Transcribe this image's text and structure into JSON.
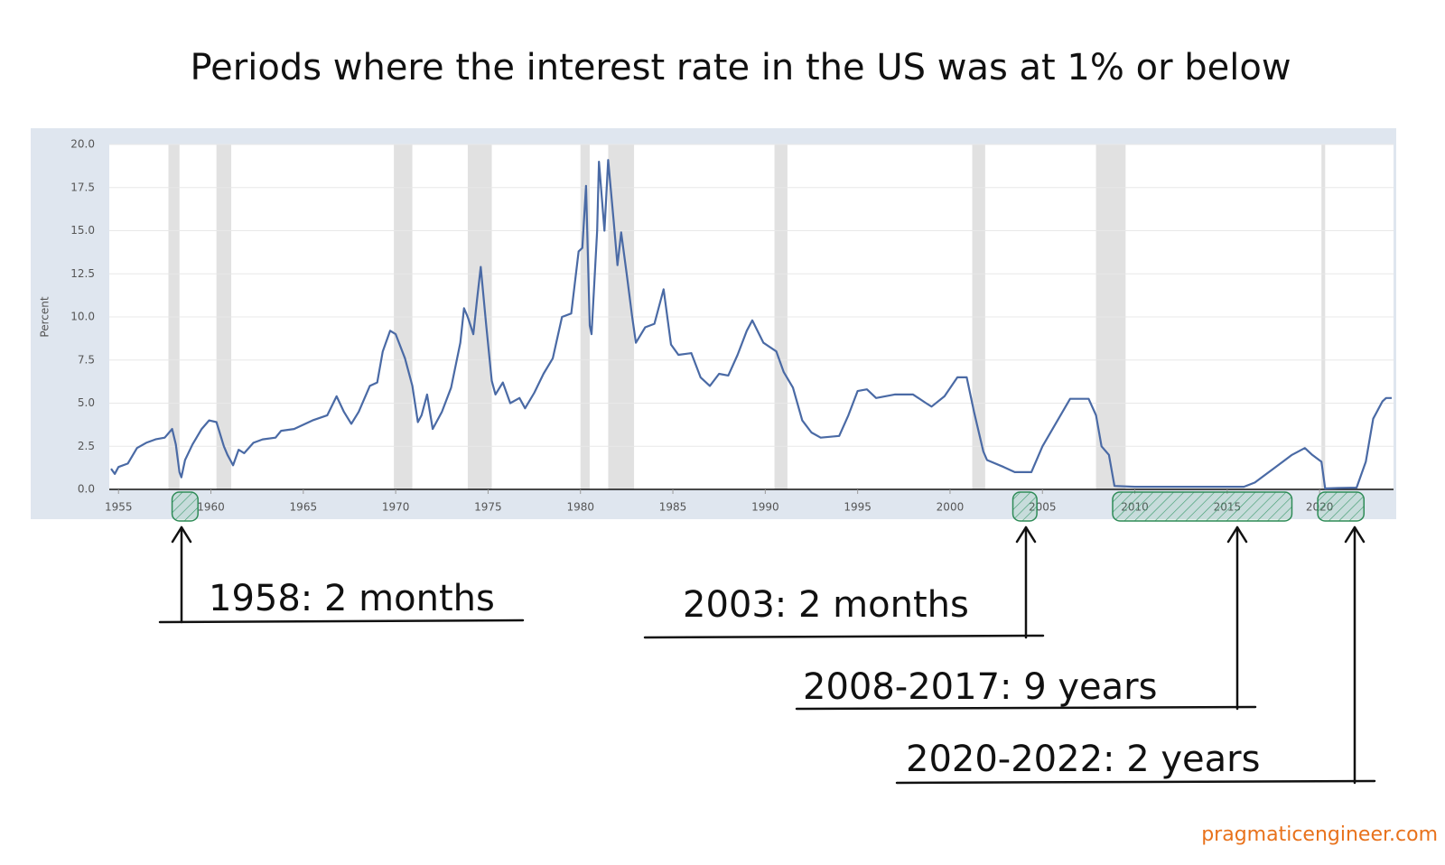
{
  "chart_data": {
    "type": "line",
    "title": "Periods where the interest rate in the US was at 1% or below",
    "y_label": "Percent",
    "footer": "pragmaticengineer.com",
    "color": "#4a6aa5",
    "grid": true,
    "xlim": [
      1954.5,
      2024.0
    ],
    "xticks": [
      1955,
      1960,
      1965,
      1970,
      1975,
      1980,
      1985,
      1990,
      1995,
      2000,
      2005,
      2010,
      2015,
      2020
    ],
    "ylim": [
      0,
      20
    ],
    "yticks": [
      {
        "value": 0,
        "label": "0.0"
      },
      {
        "value": 2.5,
        "label": "2.5"
      },
      {
        "value": 5,
        "label": "5.0"
      },
      {
        "value": 7.5,
        "label": "7.5"
      },
      {
        "value": 10,
        "label": "10.0"
      },
      {
        "value": 12.5,
        "label": "12.5"
      },
      {
        "value": 15,
        "label": "15.0"
      },
      {
        "value": 17.5,
        "label": "17.5"
      },
      {
        "value": 20,
        "label": "20.0"
      }
    ],
    "recessions": [
      [
        1957.7,
        1958.3
      ],
      [
        1960.3,
        1961.1
      ],
      [
        1969.9,
        1970.9
      ],
      [
        1973.9,
        1975.2
      ],
      [
        1980.0,
        1980.5
      ],
      [
        1981.5,
        1982.9
      ],
      [
        1990.5,
        1991.2
      ],
      [
        2001.2,
        2001.9
      ],
      [
        2007.9,
        2009.5
      ],
      [
        2020.1,
        2020.3
      ]
    ],
    "x": [
      1954.6,
      1954.8,
      1955.0,
      1955.5,
      1956,
      1956.5,
      1957,
      1957.5,
      1957.9,
      1958.1,
      1958.3,
      1958.4,
      1958.6,
      1959,
      1959.5,
      1959.9,
      1960.3,
      1960.7,
      1960.9,
      1961.2,
      1961.5,
      1961.8,
      1962.3,
      1962.8,
      1963.5,
      1963.8,
      1964.5,
      1965.5,
      1966.3,
      1966.8,
      1967.2,
      1967.6,
      1968.0,
      1968.6,
      1969.0,
      1969.3,
      1969.7,
      1970.0,
      1970.5,
      1970.9,
      1971.2,
      1971.4,
      1971.7,
      1972.0,
      1972.5,
      1973.0,
      1973.5,
      1973.7,
      1973.9,
      1974.2,
      1974.4,
      1974.6,
      1974.9,
      1975.2,
      1975.4,
      1975.8,
      1976.2,
      1976.7,
      1977.0,
      1977.5,
      1978.0,
      1978.5,
      1979.0,
      1979.5,
      1979.9,
      1980.1,
      1980.3,
      1980.5,
      1980.6,
      1980.9,
      1981.0,
      1981.3,
      1981.5,
      1981.8,
      1982.0,
      1982.2,
      1982.5,
      1982.8,
      1983.0,
      1983.5,
      1984.0,
      1984.5,
      1984.9,
      1985.3,
      1986.0,
      1986.5,
      1987.0,
      1987.5,
      1988.0,
      1988.5,
      1989.0,
      1989.3,
      1989.9,
      1990.6,
      1991.0,
      1991.5,
      1992.0,
      1992.5,
      1993.0,
      1994.0,
      1994.5,
      1995.0,
      1995.5,
      1996.0,
      1997.0,
      1998.0,
      1998.7,
      1999.0,
      1999.7,
      2000.4,
      2000.9,
      2001.3,
      2001.8,
      2002.0,
      2002.9,
      2003.5,
      2004.4,
      2005.0,
      2006.5,
      2007.5,
      2007.9,
      2008.2,
      2008.6,
      2008.9,
      2010,
      2012,
      2015.9,
      2016.5,
      2017.5,
      2018.5,
      2019.2,
      2019.6,
      2020.1,
      2020.3,
      2021,
      2022,
      2022.5,
      2022.9,
      2023.4,
      2023.6,
      2023.9
    ],
    "values": [
      1.2,
      0.9,
      1.3,
      1.5,
      2.4,
      2.7,
      2.9,
      3.0,
      3.5,
      2.6,
      1.0,
      0.7,
      1.7,
      2.6,
      3.5,
      4.0,
      3.9,
      2.5,
      2.0,
      1.4,
      2.3,
      2.1,
      2.7,
      2.9,
      3.0,
      3.4,
      3.5,
      4.0,
      4.3,
      5.4,
      4.5,
      3.8,
      4.5,
      6.0,
      6.2,
      8.0,
      9.2,
      9.0,
      7.6,
      6.0,
      3.9,
      4.3,
      5.5,
      3.5,
      4.5,
      5.9,
      8.5,
      10.5,
      10.0,
      9.0,
      11.0,
      12.9,
      9.5,
      6.3,
      5.5,
      6.2,
      5.0,
      5.3,
      4.7,
      5.6,
      6.7,
      7.6,
      10.0,
      10.2,
      13.8,
      14.0,
      17.6,
      9.5,
      9.0,
      15.0,
      19.0,
      15.0,
      19.1,
      15.5,
      13.0,
      14.9,
      12.5,
      10.0,
      8.5,
      9.4,
      9.6,
      11.6,
      8.4,
      7.8,
      7.9,
      6.5,
      6.0,
      6.7,
      6.6,
      7.8,
      9.2,
      9.8,
      8.5,
      8.0,
      6.8,
      5.9,
      4.0,
      3.3,
      3.0,
      3.1,
      4.3,
      5.7,
      5.8,
      5.3,
      5.5,
      5.5,
      5.0,
      4.8,
      5.4,
      6.5,
      6.5,
      4.5,
      2.2,
      1.7,
      1.3,
      1.0,
      1.0,
      2.5,
      5.25,
      5.25,
      4.3,
      2.5,
      2.0,
      0.2,
      0.15,
      0.15,
      0.15,
      0.4,
      1.2,
      2.0,
      2.4,
      2.0,
      1.6,
      0.05,
      0.08,
      0.1,
      1.6,
      4.1,
      5.1,
      5.3,
      5.3
    ],
    "annotations": [
      {
        "text": "1958: 2 months",
        "x": [
          1957.9,
          1959.3
        ]
      },
      {
        "text": "2003: 2 months",
        "x": [
          2003.4,
          2004.7
        ]
      },
      {
        "text": "2008-2017: 9 years",
        "x": [
          2008.8,
          2018.5
        ]
      },
      {
        "text": "2020-2022: 2 years",
        "x": [
          2019.9,
          2022.4
        ]
      }
    ]
  }
}
